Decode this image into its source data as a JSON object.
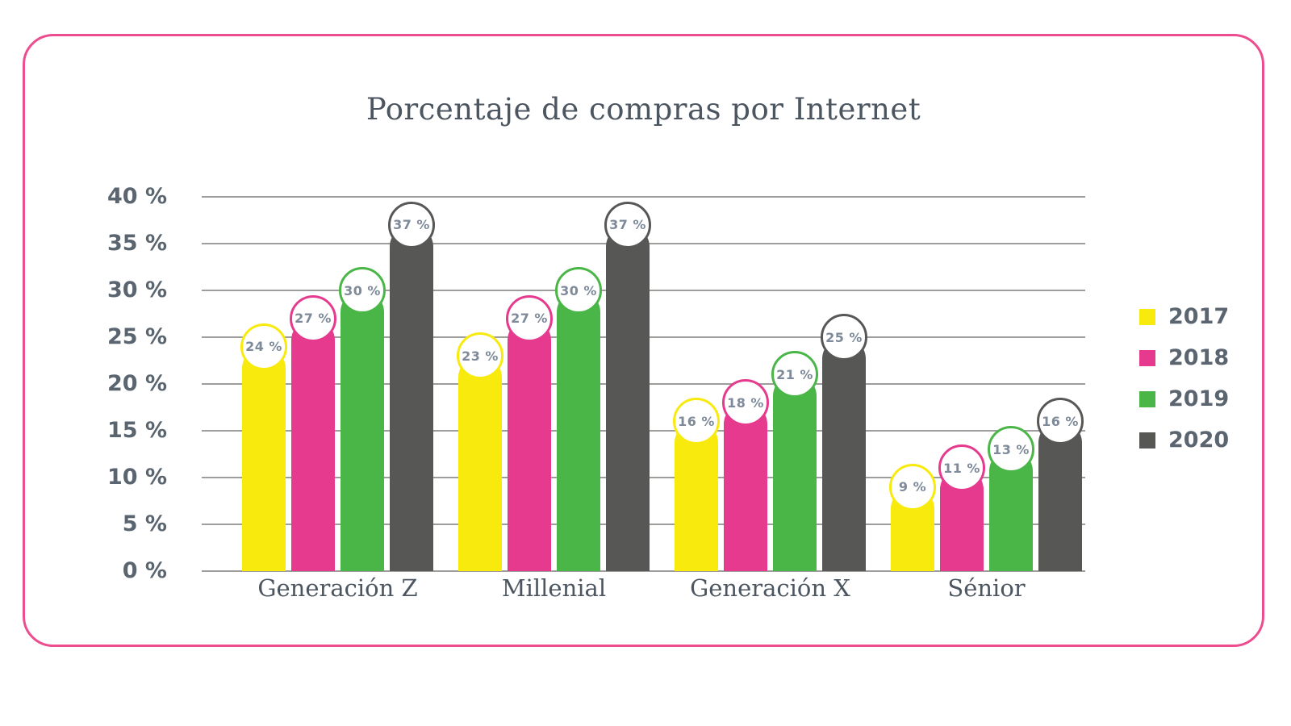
{
  "frame": {
    "border_color": "#ED4C8F"
  },
  "chart_data": {
    "type": "bar",
    "title": "Porcentaje de compras por Internet",
    "categories": [
      "Generación Z",
      "Millenial",
      "Generación X",
      "Sénior"
    ],
    "series": [
      {
        "name": "2017",
        "color": "#F8EA0D",
        "values": [
          24,
          23,
          16,
          9
        ]
      },
      {
        "name": "2018",
        "color": "#E63A8E",
        "values": [
          27,
          27,
          18,
          11
        ]
      },
      {
        "name": "2019",
        "color": "#4BB648",
        "values": [
          30,
          30,
          21,
          13
        ]
      },
      {
        "name": "2020",
        "color": "#575756",
        "values": [
          37,
          37,
          25,
          16
        ]
      }
    ],
    "value_label_suffix": " %",
    "value_labels": [
      [
        "24 %",
        "23 %",
        "16 %",
        "9 %"
      ],
      [
        "27 %",
        "27 %",
        "18 %",
        "11 %"
      ],
      [
        "30 %",
        "30 %",
        "21 %",
        "13 %"
      ],
      [
        "37 %",
        "37 %",
        "25 %",
        "16 %"
      ]
    ],
    "ylim": [
      0,
      40
    ],
    "ytick_step": 5,
    "ytick_labels": [
      "0 %",
      "5 %",
      "10 %",
      "15 %",
      "20 %",
      "25 %",
      "30 %",
      "35 %",
      "40 %"
    ],
    "grid": true,
    "gridline_color": "#9D9D9C",
    "legend_position": "right",
    "bubble_text_color": "#7E8A99"
  }
}
